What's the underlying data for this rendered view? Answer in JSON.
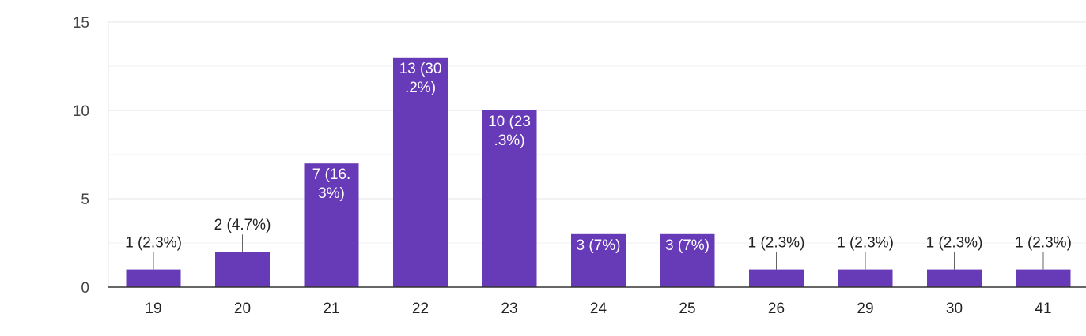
{
  "chart_data": {
    "type": "bar",
    "categories": [
      "19",
      "20",
      "21",
      "22",
      "23",
      "24",
      "25",
      "26",
      "29",
      "30",
      "41"
    ],
    "values": [
      1,
      2,
      7,
      13,
      10,
      3,
      3,
      1,
      1,
      1,
      1
    ],
    "data_labels": [
      "1 (2.3%)",
      "2 (4.7%)",
      "7 (16.3%)",
      "13 (30.2%)",
      "10 (23.3%)",
      "3 (7%)",
      "3 (7%)",
      "1 (2.3%)",
      "1 (2.3%)",
      "1 (2.3%)",
      "1 (2.3%)"
    ],
    "y_ticks": [
      0,
      5,
      10,
      15
    ],
    "ylim": [
      0,
      15
    ],
    "grid": true,
    "bar_color": "#673ab7",
    "title": "",
    "xlabel": "",
    "ylabel": ""
  }
}
